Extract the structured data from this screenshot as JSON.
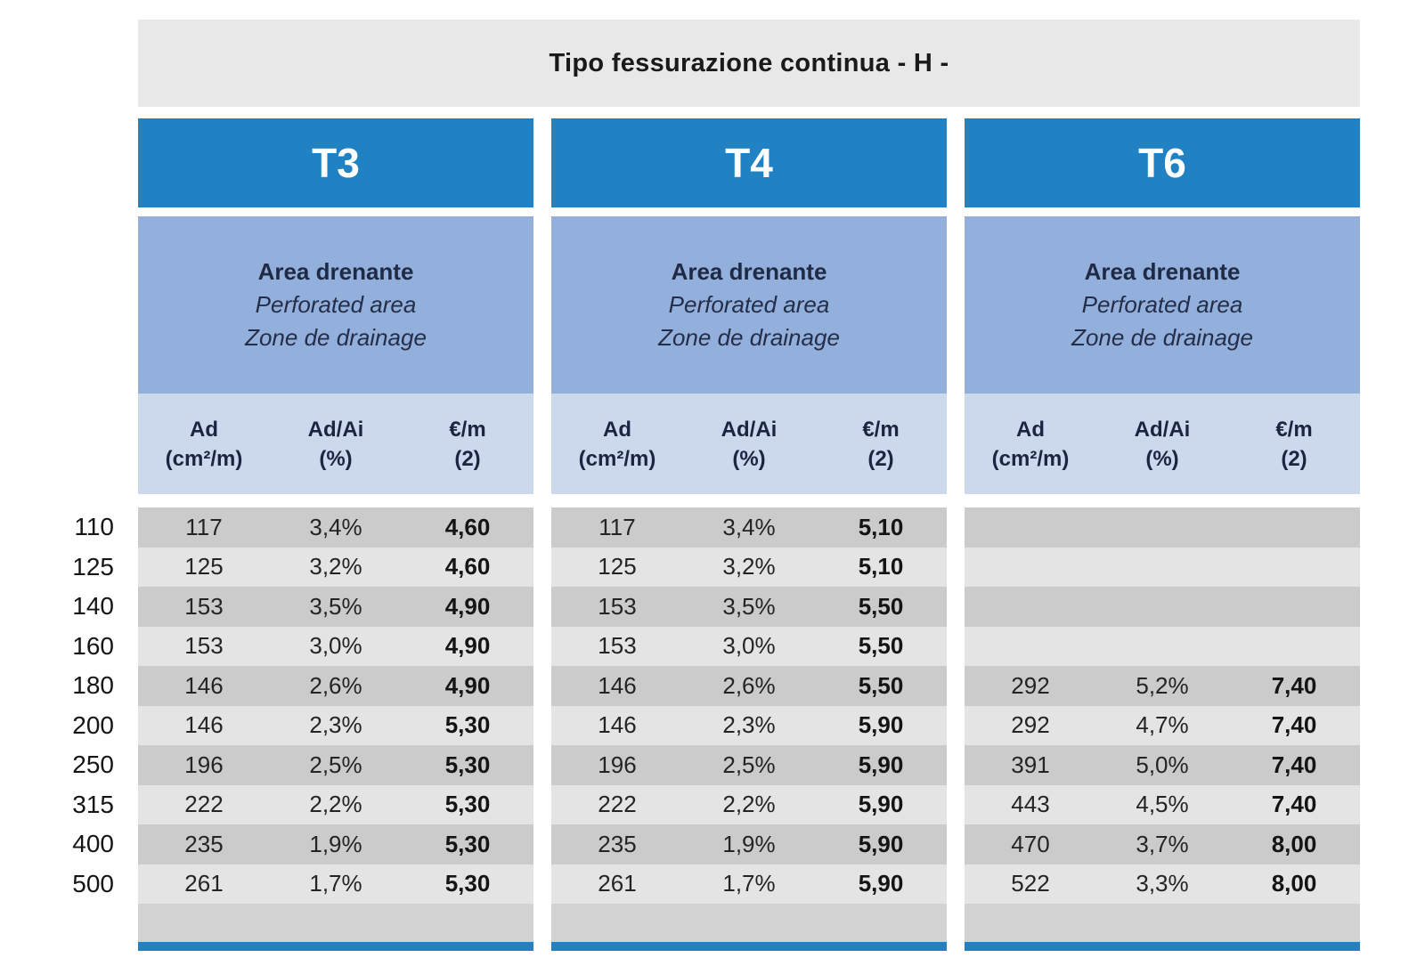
{
  "title": "Tipo fessurazione continua - H -",
  "colors": {
    "header_blue": "#2082c3",
    "band_blue": "#93afdc",
    "subheader_blue": "#ccd9ec",
    "title_gray": "#e8e8e8",
    "row_dark": "#cbcbcb",
    "row_light": "#e4e4e4",
    "footer_row_gray": "#d2d2d2",
    "accent_bar_blue": "#2082c3"
  },
  "band": {
    "line1": "Area drenante",
    "line2": "Perforated area",
    "line3": "Zone de drainage"
  },
  "columns": [
    {
      "line1": "Ad",
      "line2": "(cm²/m)"
    },
    {
      "line1": "Ad/Ai",
      "line2": "(%)"
    },
    {
      "line1": "€/m",
      "line2": "(2)"
    }
  ],
  "row_labels": [
    "110",
    "125",
    "140",
    "160",
    "180",
    "200",
    "250",
    "315",
    "400",
    "500"
  ],
  "groups": [
    {
      "name": "T3",
      "rows": [
        [
          "117",
          "3,4%",
          "4,60"
        ],
        [
          "125",
          "3,2%",
          "4,60"
        ],
        [
          "153",
          "3,5%",
          "4,90"
        ],
        [
          "153",
          "3,0%",
          "4,90"
        ],
        [
          "146",
          "2,6%",
          "4,90"
        ],
        [
          "146",
          "2,3%",
          "5,30"
        ],
        [
          "196",
          "2,5%",
          "5,30"
        ],
        [
          "222",
          "2,2%",
          "5,30"
        ],
        [
          "235",
          "1,9%",
          "5,30"
        ],
        [
          "261",
          "1,7%",
          "5,30"
        ]
      ]
    },
    {
      "name": "T4",
      "rows": [
        [
          "117",
          "3,4%",
          "5,10"
        ],
        [
          "125",
          "3,2%",
          "5,10"
        ],
        [
          "153",
          "3,5%",
          "5,50"
        ],
        [
          "153",
          "3,0%",
          "5,50"
        ],
        [
          "146",
          "2,6%",
          "5,50"
        ],
        [
          "146",
          "2,3%",
          "5,90"
        ],
        [
          "196",
          "2,5%",
          "5,90"
        ],
        [
          "222",
          "2,2%",
          "5,90"
        ],
        [
          "235",
          "1,9%",
          "5,90"
        ],
        [
          "261",
          "1,7%",
          "5,90"
        ]
      ]
    },
    {
      "name": "T6",
      "rows": [
        [
          "",
          "",
          ""
        ],
        [
          "",
          "",
          ""
        ],
        [
          "",
          "",
          ""
        ],
        [
          "",
          "",
          ""
        ],
        [
          "292",
          "5,2%",
          "7,40"
        ],
        [
          "292",
          "4,7%",
          "7,40"
        ],
        [
          "391",
          "5,0%",
          "7,40"
        ],
        [
          "443",
          "4,5%",
          "7,40"
        ],
        [
          "470",
          "3,7%",
          "8,00"
        ],
        [
          "522",
          "3,3%",
          "8,00"
        ]
      ]
    }
  ]
}
